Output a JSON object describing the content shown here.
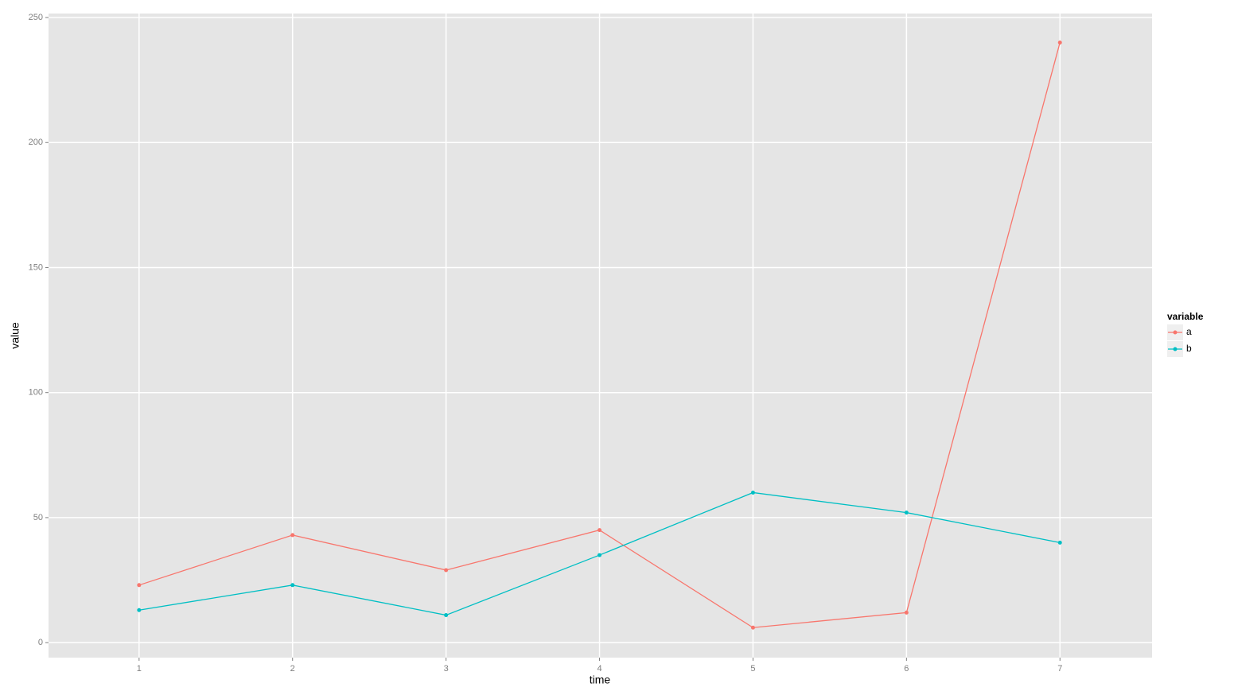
{
  "chart_data": {
    "type": "line",
    "x_label": "time",
    "y_label": "value",
    "x": [
      1,
      2,
      3,
      4,
      5,
      6,
      7
    ],
    "series": [
      {
        "name": "a",
        "color": "#F8766D",
        "values": [
          23,
          43,
          29,
          45,
          6,
          12,
          240
        ]
      },
      {
        "name": "b",
        "color": "#00BFC4",
        "values": [
          13,
          23,
          11,
          35,
          60,
          52,
          40
        ]
      }
    ],
    "xlim": [
      0.41,
      7.6
    ],
    "ylim": [
      -6,
      251.6
    ],
    "xticks": [
      1,
      2,
      3,
      4,
      5,
      6,
      7
    ],
    "yticks": [
      0,
      50,
      100,
      150,
      200,
      250
    ],
    "grid": true,
    "legend_title": "variable",
    "legend_position": "right"
  }
}
